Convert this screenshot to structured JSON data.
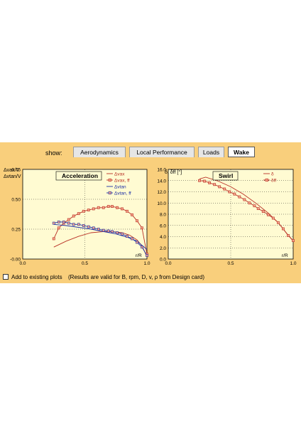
{
  "tabs": {
    "show_label": "show:",
    "items": [
      {
        "label": "Aerodynamics",
        "active": false
      },
      {
        "label": "Local Performance",
        "active": false
      },
      {
        "label": "Loads",
        "active": false
      },
      {
        "label": "Wake",
        "active": true
      }
    ]
  },
  "bottom": {
    "checkbox_label": "Add to existing plots",
    "note": "(Results are valid for B, rpm, D, v, ρ from Design card)"
  },
  "colors": {
    "panel_bg": "#f9cf7c",
    "plot_bg": "#fffbd2",
    "red": "#b83025",
    "blue": "#1c2fa6",
    "marker_fill": "#f6a68c"
  },
  "chart_data": [
    {
      "type": "line",
      "title": "Acceleration",
      "ylabel_lines": [
        "Δvax/V",
        "Δvtan/V"
      ],
      "xlabel": "r/R",
      "xlim": [
        0,
        1.0
      ],
      "ylim": [
        -0.0,
        0.75
      ],
      "x_ticks": [
        "0.0",
        "0.5",
        "1.0"
      ],
      "y_ticks": [
        "-0.00",
        "0.25",
        "0.50",
        "0.75"
      ],
      "y_tick_values": [
        0,
        0.25,
        0.5,
        0.75
      ],
      "series": [
        {
          "name": "Δvax",
          "color": "#b83025",
          "marker": false,
          "x": [
            0.25,
            0.35,
            0.45,
            0.55,
            0.65,
            0.72,
            0.8,
            0.86,
            0.92,
            0.96,
            1.0
          ],
          "y": [
            0.1,
            0.15,
            0.19,
            0.22,
            0.23,
            0.23,
            0.22,
            0.2,
            0.16,
            0.11,
            0.02
          ]
        },
        {
          "name": "Δvax, ff",
          "color": "#b83025",
          "marker": true,
          "x": [
            0.25,
            0.29,
            0.33,
            0.37,
            0.41,
            0.45,
            0.49,
            0.53,
            0.57,
            0.61,
            0.65,
            0.69,
            0.72,
            0.76,
            0.8,
            0.84,
            0.88,
            0.92,
            0.96,
            1.0
          ],
          "y": [
            0.17,
            0.26,
            0.3,
            0.33,
            0.36,
            0.38,
            0.4,
            0.41,
            0.42,
            0.43,
            0.43,
            0.44,
            0.44,
            0.43,
            0.42,
            0.4,
            0.37,
            0.32,
            0.26,
            0.04
          ]
        },
        {
          "name": "Δvtan",
          "color": "#1c2fa6",
          "marker": false,
          "x": [
            0.25,
            0.35,
            0.45,
            0.55,
            0.65,
            0.75,
            0.85,
            0.92,
            1.0
          ],
          "y": [
            0.29,
            0.28,
            0.265,
            0.25,
            0.23,
            0.21,
            0.18,
            0.15,
            0.08
          ]
        },
        {
          "name": "Δvtan, ff",
          "color": "#1c2fa6",
          "marker": true,
          "x": [
            0.25,
            0.29,
            0.33,
            0.37,
            0.41,
            0.45,
            0.49,
            0.53,
            0.57,
            0.61,
            0.65,
            0.69,
            0.72,
            0.76,
            0.8,
            0.84,
            0.88,
            0.92,
            0.96,
            1.0
          ],
          "y": [
            0.3,
            0.31,
            0.31,
            0.3,
            0.29,
            0.29,
            0.28,
            0.27,
            0.26,
            0.25,
            0.24,
            0.235,
            0.23,
            0.22,
            0.21,
            0.19,
            0.17,
            0.14,
            0.1,
            0.03
          ]
        }
      ]
    },
    {
      "type": "line",
      "title": "Swirl",
      "ylabel_lines": [
        "δ, δff [°]"
      ],
      "xlabel": "r/R",
      "xlim": [
        0,
        1.0
      ],
      "ylim": [
        0,
        16.0
      ],
      "x_ticks": [
        "0.0",
        "0.5",
        "1.0"
      ],
      "y_ticks": [
        "0.0",
        "2.0",
        "4.0",
        "6.0",
        "8.0",
        "10.0",
        "12.0",
        "14.0",
        "16.0"
      ],
      "y_tick_values": [
        0,
        2,
        4,
        6,
        8,
        10,
        12,
        14,
        16
      ],
      "series": [
        {
          "name": "δ",
          "color": "#b83025",
          "marker": false,
          "x": [
            0.25,
            0.3,
            0.4,
            0.5,
            0.6,
            0.7,
            0.8,
            0.88,
            0.94,
            1.0
          ],
          "y": [
            14.3,
            14.6,
            13.9,
            12.9,
            11.6,
            10.0,
            8.2,
            6.5,
            4.8,
            3.2
          ]
        },
        {
          "name": "δff",
          "color": "#b83025",
          "marker": true,
          "x": [
            0.25,
            0.29,
            0.33,
            0.37,
            0.41,
            0.45,
            0.49,
            0.53,
            0.57,
            0.61,
            0.65,
            0.69,
            0.72,
            0.76,
            0.8,
            0.84,
            0.88,
            0.92,
            0.96,
            1.0
          ],
          "y": [
            14.0,
            13.9,
            13.6,
            13.3,
            12.9,
            12.5,
            12.0,
            11.6,
            11.1,
            10.6,
            10.0,
            9.5,
            9.0,
            8.5,
            7.9,
            7.3,
            6.5,
            5.4,
            4.2,
            3.3
          ]
        }
      ]
    }
  ]
}
